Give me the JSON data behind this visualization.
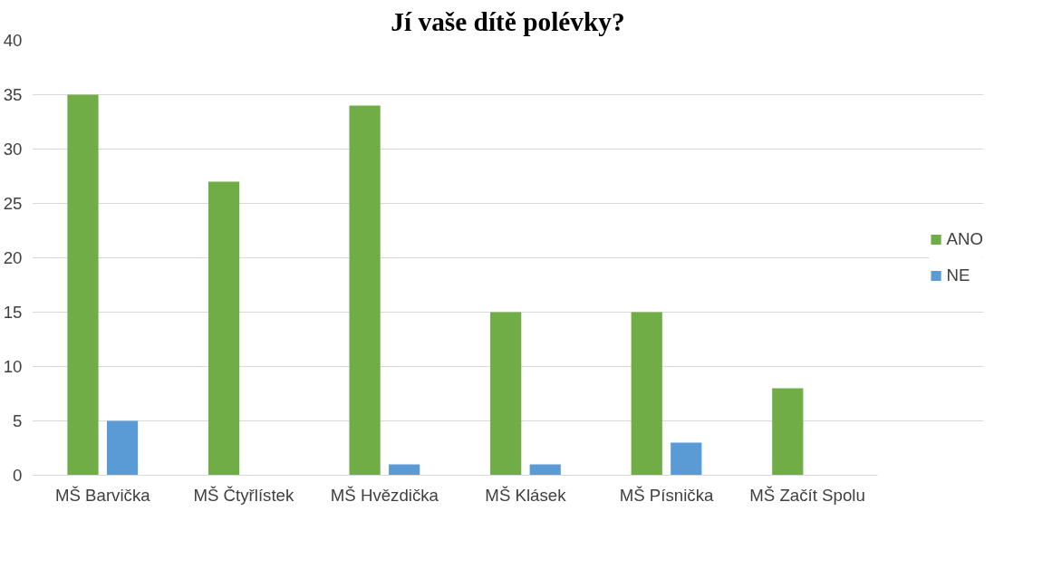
{
  "chart_data": {
    "type": "bar",
    "title": "Jí vaše dítě polévky?",
    "categories": [
      "MŠ Barvička",
      "MŠ Čtyřlístek",
      "MŠ Hvězdička",
      "MŠ Klásek",
      "MŠ Písnička",
      "MŠ Začít Spolu"
    ],
    "series": [
      {
        "name": "ANO",
        "color": "#70ad47",
        "values": [
          35,
          27,
          34,
          15,
          15,
          8
        ]
      },
      {
        "name": "NE",
        "color": "#5b9bd5",
        "values": [
          5,
          0,
          1,
          1,
          3,
          0
        ]
      }
    ],
    "ylim": [
      0,
      40
    ],
    "yticks": [
      0,
      5,
      10,
      15,
      20,
      25,
      30,
      35,
      40
    ],
    "grid": "y",
    "legend": "right"
  }
}
